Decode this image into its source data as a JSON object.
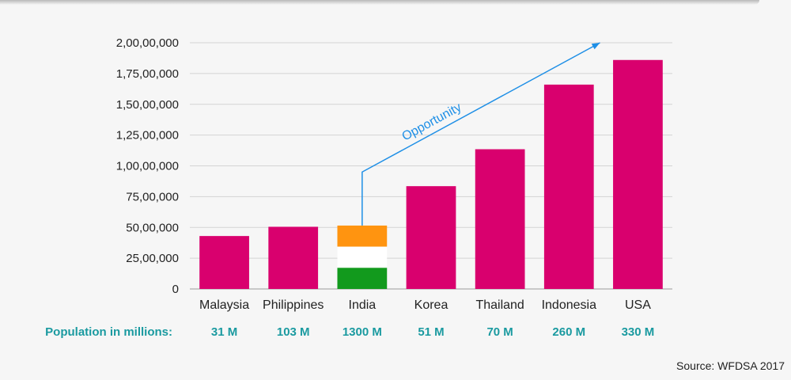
{
  "chart_data": {
    "type": "bar",
    "categories": [
      "Malaysia",
      "Philippines",
      "India",
      "Korea",
      "Thailand",
      "Indonesia",
      "USA"
    ],
    "values": [
      4300000,
      5050000,
      5150000,
      8350000,
      11350000,
      16600000,
      18600000
    ],
    "y_ticks": [
      "0",
      "25,00,000",
      "50,00,000",
      "75,00,000",
      "1,00,00,000",
      "1,25,00,000",
      "1,50,00,000",
      "1,75,00,000",
      "2,00,00,000"
    ],
    "ylim": [
      0,
      20000000
    ],
    "grid": true,
    "bar_color": "#d9006e",
    "india_flag_colors": [
      "#ff9410",
      "#ffffff",
      "#129a1d"
    ],
    "population_label": "Population in millions:",
    "population": [
      "31 M",
      "103 M",
      "1300 M",
      "51 M",
      "70 M",
      "260 M",
      "330 M"
    ],
    "annotation": {
      "text": "Opportunity",
      "color": "#1e8fe6"
    }
  },
  "source": "Source: WFDSA 2017"
}
